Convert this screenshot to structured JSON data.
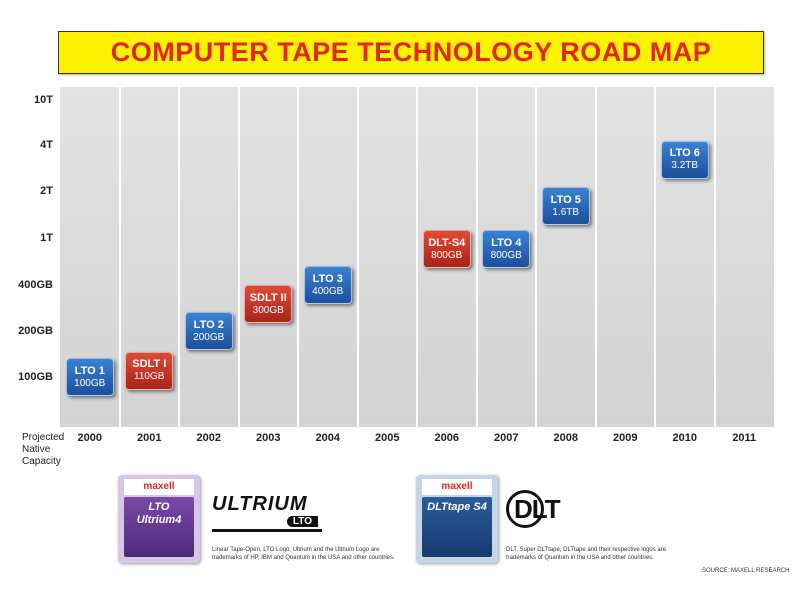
{
  "title": "COMPUTER TAPE TECHNOLOGY ROAD MAP",
  "chart_data": {
    "type": "scatter",
    "title": "COMPUTER TAPE TECHNOLOGY ROAD MAP",
    "xlabel": "Projected Native Capacity",
    "ylabel": "",
    "y_scale": "log",
    "y_ticks": [
      {
        "label": "10T",
        "value_gb": 10000
      },
      {
        "label": "4T",
        "value_gb": 4000
      },
      {
        "label": "2T",
        "value_gb": 2000
      },
      {
        "label": "1T",
        "value_gb": 1000
      },
      {
        "label": "400GB",
        "value_gb": 400
      },
      {
        "label": "200GB",
        "value_gb": 200
      },
      {
        "label": "100GB",
        "value_gb": 100
      }
    ],
    "categories": [
      "2000",
      "2001",
      "2002",
      "2003",
      "2004",
      "2005",
      "2006",
      "2007",
      "2008",
      "2009",
      "2010",
      "2011"
    ],
    "series": [
      {
        "name": "LTO",
        "color": "#2a66b8",
        "points": [
          {
            "label": "LTO 1",
            "capacity": "100GB",
            "year": "2000",
            "value_gb": 100
          },
          {
            "label": "LTO 2",
            "capacity": "200GB",
            "year": "2002",
            "value_gb": 200
          },
          {
            "label": "LTO 3",
            "capacity": "400GB",
            "year": "2004",
            "value_gb": 400
          },
          {
            "label": "LTO 4",
            "capacity": "800GB",
            "year": "2007",
            "value_gb": 800
          },
          {
            "label": "LTO 5",
            "capacity": "1.6TB",
            "year": "2008",
            "value_gb": 1600
          },
          {
            "label": "LTO 6",
            "capacity": "3.2TB",
            "year": "2010",
            "value_gb": 3200
          }
        ]
      },
      {
        "name": "DLT",
        "color": "#c8331f",
        "points": [
          {
            "label": "SDLT I",
            "capacity": "110GB",
            "year": "2001",
            "value_gb": 110
          },
          {
            "label": "SDLT II",
            "capacity": "300GB",
            "year": "2003",
            "value_gb": 300
          },
          {
            "label": "DLT-S4",
            "capacity": "800GB",
            "year": "2006",
            "value_gb": 800
          }
        ]
      }
    ],
    "grid": true
  },
  "logos": {
    "lto_cartridge": {
      "brand": "maxell",
      "model_line1": "LTO",
      "model_line2": "Ultrium4"
    },
    "dlt_cartridge": {
      "brand": "maxell",
      "model_line1": "DLTtape S4"
    },
    "ultrium_logo": {
      "word": "ULTRIUM",
      "sub": "LTO"
    },
    "dlt_logo": {
      "word": "DLT"
    }
  },
  "trademarks": {
    "lto": "Linear Tape-Open, LTO Logo, Ultrium and the Ultrium Logo are trademarks of HP, IBM and Quantum in the USA and other countries.",
    "dlt": "DLT, Super DLTtape, DLTtape and their respective logos are trademarks of Quantum in the USA and other countries."
  },
  "source": "SOURCE: MAXELL RESEARCH"
}
